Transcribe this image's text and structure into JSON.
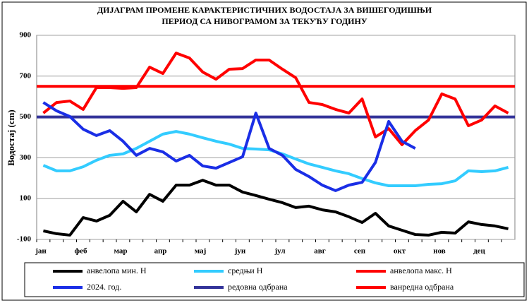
{
  "chart_data": {
    "type": "line",
    "title": [
      "ДИЈАГРАМ ПРОМЕНЕ КАРАКТЕРИСТИЧНИХ ВОДОСТАЈА ЗА ВИШЕГОДИШЊИ",
      "ПЕРИОД СА НИВОГРАМОМ ЗА ТЕКУЋУ ГОДИНУ"
    ],
    "y_label": "Водостај (cm)",
    "categories": [
      "јан",
      null,
      null,
      "феб",
      null,
      null,
      "мар",
      null,
      null,
      "апр",
      null,
      null,
      "мај",
      null,
      null,
      "јун",
      null,
      null,
      "јул",
      null,
      null,
      "авг",
      null,
      null,
      "сеп",
      null,
      null,
      "окт",
      null,
      null,
      "нов",
      null,
      null,
      "дец",
      null,
      null
    ],
    "ylim": [
      -100,
      900
    ],
    "yticks": [
      -100,
      100,
      300,
      500,
      700,
      900
    ],
    "grid": true,
    "series": [
      {
        "name": "анвелопа мин. H",
        "color": "#000000",
        "values": [
          -58,
          -72,
          -79,
          7,
          -10,
          18,
          87,
          35,
          121,
          87,
          166,
          166,
          190,
          166,
          166,
          132,
          115,
          97,
          80,
          56,
          63,
          45,
          35,
          11,
          -17,
          28,
          -34,
          -55,
          -76,
          -79,
          -65,
          -69,
          -14,
          -27,
          -34,
          -48
        ]
      },
      {
        "name": "средњи H",
        "color": "#33ccff",
        "values": [
          263,
          236,
          236,
          256,
          288,
          312,
          319,
          346,
          381,
          416,
          429,
          416,
          398,
          381,
          367,
          346,
          343,
          339,
          319,
          294,
          270,
          253,
          236,
          222,
          198,
          177,
          163,
          163,
          163,
          170,
          173,
          187,
          236,
          232,
          236,
          253
        ]
      },
      {
        "name": "анвелопа макс. H",
        "color": "#ff0000",
        "values": [
          519,
          571,
          578,
          537,
          644,
          644,
          640,
          644,
          744,
          713,
          813,
          789,
          720,
          685,
          734,
          737,
          779,
          779,
          734,
          692,
          571,
          561,
          537,
          519,
          588,
          402,
          443,
          364,
          433,
          485,
          613,
          588,
          457,
          485,
          554,
          519
        ]
      },
      {
        "name": "2024. год.",
        "color": "#1a2ee6",
        "values": [
          571,
          530,
          502,
          440,
          409,
          433,
          381,
          312,
          346,
          329,
          284,
          312,
          260,
          249,
          277,
          305,
          519,
          346,
          312,
          243,
          208,
          166,
          139,
          166,
          180,
          277,
          478,
          381,
          346,
          null,
          null,
          null,
          null,
          null,
          null,
          null
        ]
      }
    ],
    "thresholds": [
      {
        "name": "редовна одбрана",
        "color": "#333399",
        "value": 500
      },
      {
        "name": "ванредна одбрана",
        "color": "#ff0000",
        "value": 650
      }
    ]
  }
}
